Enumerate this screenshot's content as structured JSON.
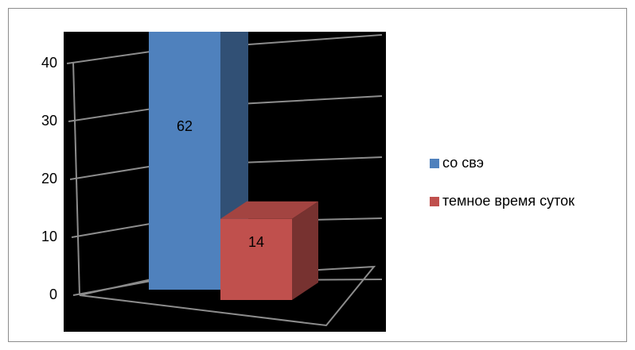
{
  "chart_data": {
    "type": "bar3d",
    "categories": [
      null
    ],
    "series": [
      {
        "name": "со свэ",
        "color": "#4f81bd",
        "values": [
          62
        ]
      },
      {
        "name": "темное время суток",
        "color": "#c0504d",
        "values": [
          14
        ]
      }
    ],
    "ylim": [
      0,
      40
    ],
    "yticks": [
      0,
      10,
      20,
      30,
      40
    ],
    "grid": true,
    "legend": "right"
  }
}
